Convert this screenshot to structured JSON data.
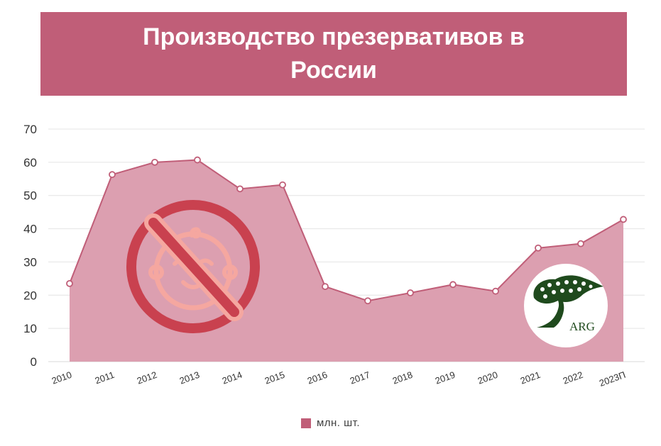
{
  "chart_data": {
    "type": "area",
    "title": "Производство презервативов в России",
    "categories": [
      "2010",
      "2011",
      "2012",
      "2013",
      "2014",
      "2015",
      "2016",
      "2017",
      "2018",
      "2019",
      "2020",
      "2021",
      "2022",
      "2023П"
    ],
    "series": [
      {
        "name": "млн. шт.",
        "values": [
          23.5,
          56.3,
          60.0,
          60.7,
          52.0,
          53.2,
          22.6,
          18.3,
          20.7,
          23.2,
          21.2,
          34.2,
          35.5,
          42.8
        ]
      }
    ],
    "yticks": [
      0,
      10,
      20,
      30,
      40,
      50,
      60,
      70
    ],
    "ylim": [
      0,
      70
    ],
    "grid": true,
    "legend_position": "bottom"
  },
  "logo": {
    "text": "ARG"
  },
  "colors": {
    "accent": "#c05e78",
    "area_fill": "#dc9fb0",
    "no_sign": "#c9414f",
    "baby_face": "#f5a7a0",
    "logo_tree": "#1f4a1d"
  },
  "icons": {
    "no_baby": "no-baby-icon",
    "logo": "arg-tree-logo"
  }
}
